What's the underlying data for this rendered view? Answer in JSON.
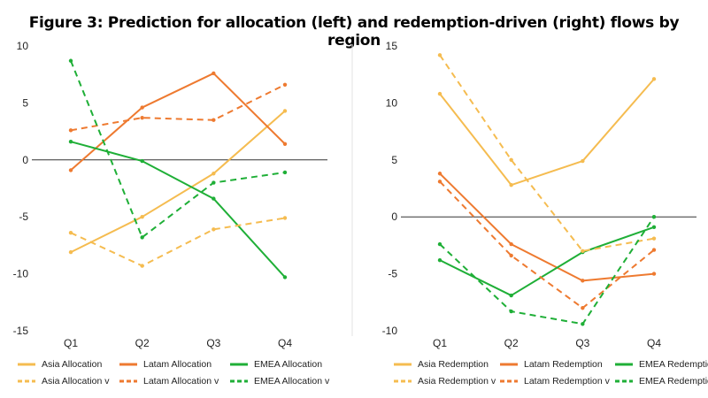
{
  "title": "Figure 3: Prediction for allocation (left) and redemption-driven (right) flows by region",
  "chart_data": [
    {
      "type": "line",
      "panel": "left",
      "categories": [
        "Q1",
        "Q2",
        "Q3",
        "Q4"
      ],
      "ylim": [
        -15,
        10
      ],
      "yticks": [
        10,
        5,
        0,
        -5,
        -10,
        -15
      ],
      "grid": false,
      "series": [
        {
          "name": "Asia Allocation",
          "color": "#F5BC50",
          "dashed": false,
          "values": [
            -8.1,
            -5.0,
            -1.2,
            4.3
          ]
        },
        {
          "name": "Latam Allocation",
          "color": "#EE7A30",
          "dashed": false,
          "values": [
            -0.9,
            4.6,
            7.6,
            1.4
          ]
        },
        {
          "name": "EMEA Allocation",
          "color": "#1FAF37",
          "dashed": false,
          "values": [
            1.6,
            -0.1,
            -3.4,
            -10.3
          ]
        },
        {
          "name": "Asia Allocation v",
          "color": "#F5BC50",
          "dashed": true,
          "values": [
            -6.4,
            -9.3,
            -6.1,
            -5.1
          ]
        },
        {
          "name": "Latam Allocation v",
          "color": "#EE7A30",
          "dashed": true,
          "values": [
            2.6,
            3.7,
            3.5,
            6.6
          ]
        },
        {
          "name": "EMEA Allocation v",
          "color": "#1FAF37",
          "dashed": true,
          "values": [
            8.7,
            -6.8,
            -2.0,
            -1.1
          ]
        }
      ]
    },
    {
      "type": "line",
      "panel": "right",
      "categories": [
        "Q1",
        "Q2",
        "Q3",
        "Q4"
      ],
      "ylim": [
        -10,
        15
      ],
      "yticks": [
        15,
        10,
        5,
        0,
        -5,
        -10
      ],
      "grid": false,
      "series": [
        {
          "name": "Asia Redemption",
          "color": "#F5BC50",
          "dashed": false,
          "values": [
            10.8,
            2.8,
            4.9,
            12.1
          ]
        },
        {
          "name": "Latam Redemption",
          "color": "#EE7A30",
          "dashed": false,
          "values": [
            3.8,
            -2.4,
            -5.6,
            -5.0
          ]
        },
        {
          "name": "EMEA Redemption",
          "color": "#1FAF37",
          "dashed": false,
          "values": [
            -3.8,
            -6.9,
            -3.1,
            -0.9
          ]
        },
        {
          "name": "Asia Redemption v",
          "color": "#F5BC50",
          "dashed": true,
          "values": [
            14.2,
            5.0,
            -3.0,
            -1.9
          ]
        },
        {
          "name": "Latam Redemption v",
          "color": "#EE7A30",
          "dashed": true,
          "values": [
            3.1,
            -3.4,
            -8.0,
            -2.9
          ]
        },
        {
          "name": "EMEA Redemption v",
          "color": "#1FAF37",
          "dashed": true,
          "values": [
            -2.4,
            -8.3,
            -9.4,
            0.0
          ]
        }
      ]
    }
  ]
}
